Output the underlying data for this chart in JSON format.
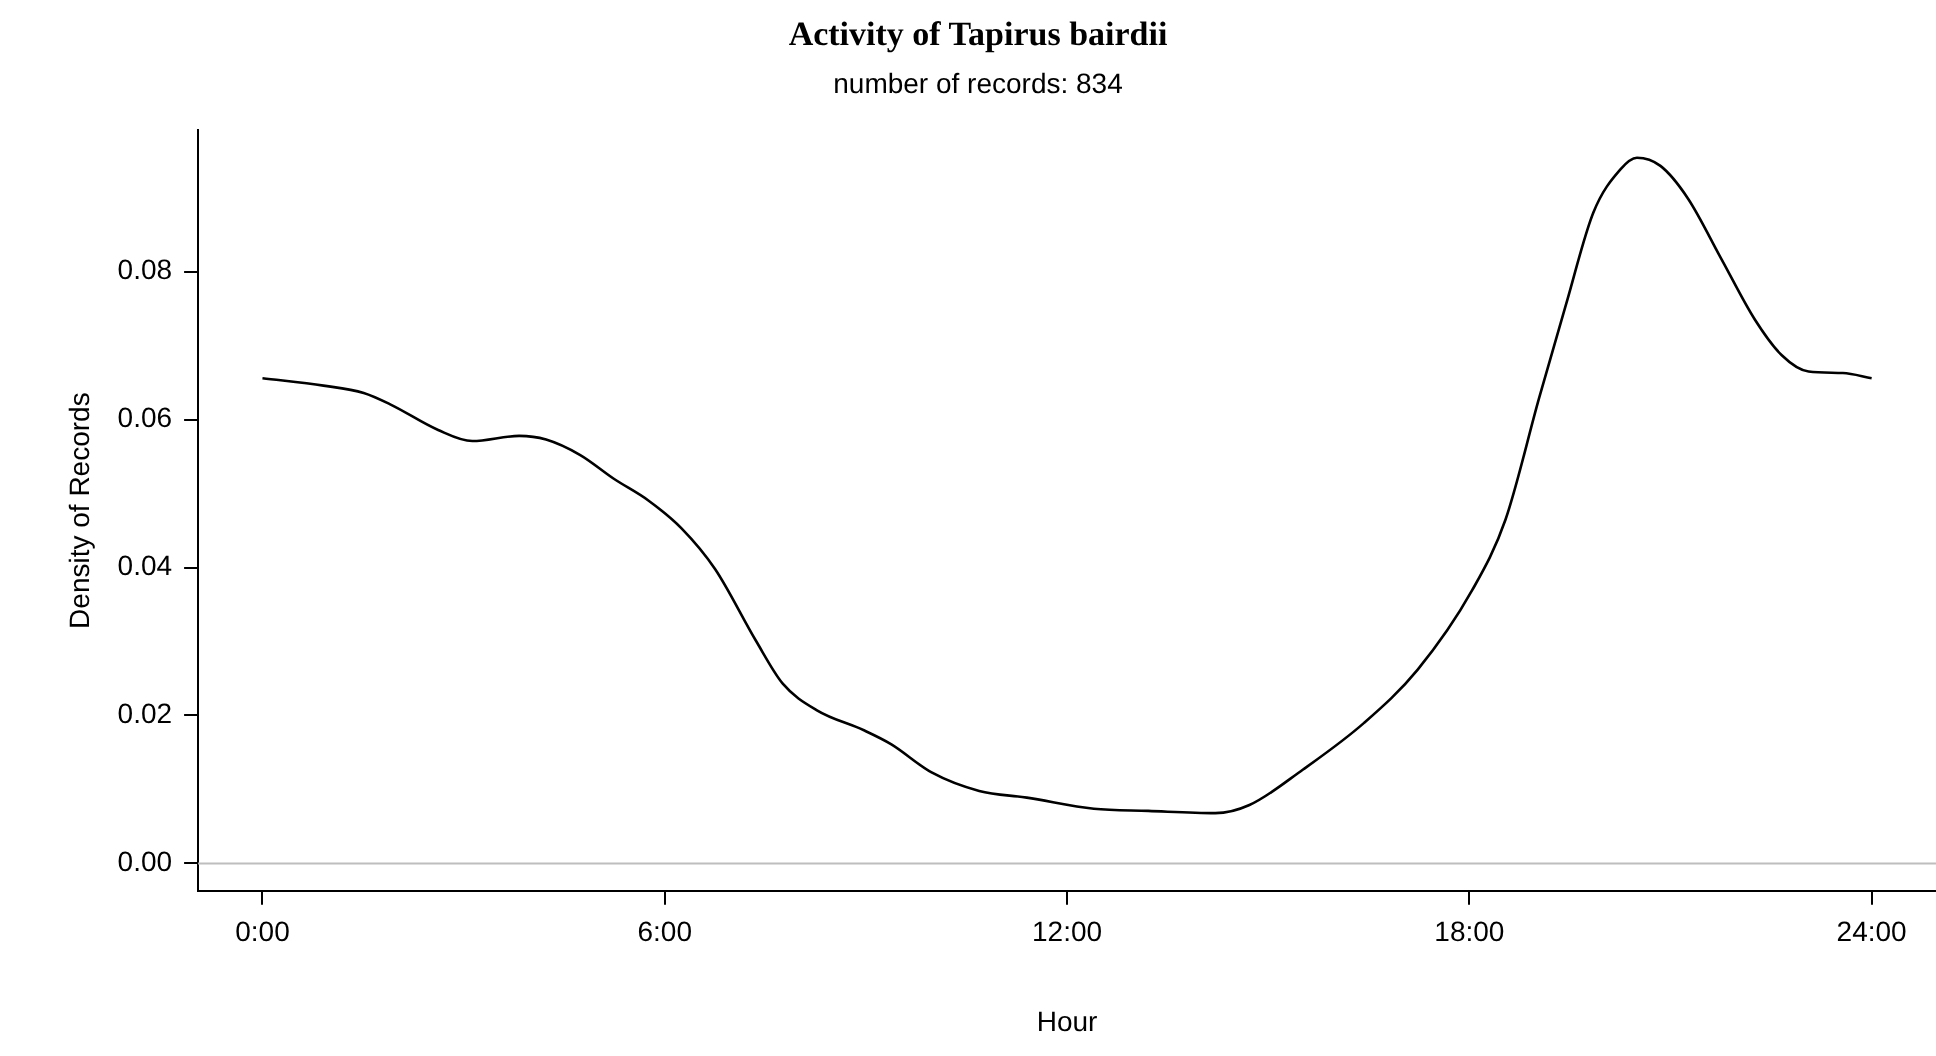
{
  "chart_data": {
    "type": "line",
    "title": "Activity of Tapirus bairdii",
    "subtitle": "number of records: 834",
    "xlabel": "Hour",
    "ylabel": "Density of Records",
    "x": [
      0,
      0.91,
      1.51,
      1.92,
      2.62,
      3.13,
      3.83,
      4.23,
      4.74,
      5.24,
      5.75,
      6.25,
      6.75,
      7.36,
      7.76,
      8.27,
      8.97,
      9.38,
      9.98,
      10.69,
      11.4,
      12.4,
      13.21,
      14.21,
      14.72,
      15.52,
      16.43,
      17.23,
      18.04,
      18.54,
      19.04,
      19.44,
      19.85,
      20.25,
      20.5,
      20.85,
      21.26,
      21.76,
      22.26,
      22.66,
      23.06,
      23.57,
      24
    ],
    "series": [
      {
        "color": "#000000",
        "values": [
          0.0656,
          0.0646,
          0.0636,
          0.062,
          0.0586,
          0.0571,
          0.0578,
          0.0573,
          0.0552,
          0.052,
          0.0491,
          0.0453,
          0.0398,
          0.0301,
          0.0243,
          0.0207,
          0.018,
          0.0161,
          0.0123,
          0.0098,
          0.0089,
          0.0074,
          0.0071,
          0.0068,
          0.0079,
          0.0127,
          0.019,
          0.0262,
          0.0369,
          0.0465,
          0.0629,
          0.0755,
          0.088,
          0.0938,
          0.0954,
          0.0943,
          0.0899,
          0.0817,
          0.0735,
          0.0687,
          0.0665,
          0.0663,
          0.0656
        ]
      }
    ],
    "xlim": [
      -0.96,
      24.96
    ],
    "xticks": [
      {
        "value": 0,
        "label": "0:00"
      },
      {
        "value": 6,
        "label": "6:00"
      },
      {
        "value": 12,
        "label": "12:00"
      },
      {
        "value": 18,
        "label": "18:00"
      },
      {
        "value": 24,
        "label": "24:00"
      }
    ],
    "ylim": [
      -0.0037,
      0.0991
    ],
    "yticks": [
      {
        "value": 0,
        "label": "0.00"
      },
      0.02,
      0.04,
      0.06,
      0.08
    ],
    "ref_lines": [
      {
        "axis": "y",
        "value": 0,
        "color": "#bebebe"
      }
    ],
    "grid": false,
    "legend": false,
    "marker": "none",
    "line_style": "solid"
  }
}
